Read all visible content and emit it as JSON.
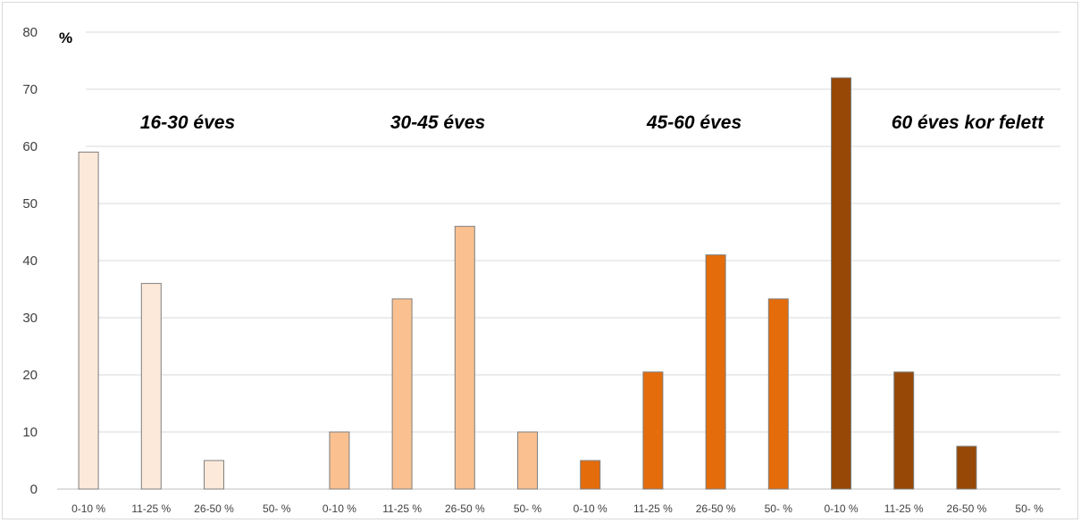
{
  "chart_data": {
    "type": "bar",
    "unit_label": "%",
    "ylim": [
      0,
      80
    ],
    "yticks": [
      0,
      10,
      20,
      30,
      40,
      50,
      60,
      70,
      80
    ],
    "grid": true,
    "categories": [
      "0-10 %",
      "11-25 %",
      "26-50 %",
      "50- %"
    ],
    "groups": [
      {
        "label": "16-30 éves",
        "color": "#fde9d9",
        "values": [
          59,
          36,
          5,
          0
        ]
      },
      {
        "label": "30-45 éves",
        "color": "#fac090",
        "values": [
          10,
          33.3,
          46,
          10
        ]
      },
      {
        "label": "45-60 éves",
        "color": "#e46c0a",
        "values": [
          5,
          20.5,
          41,
          33.3
        ]
      },
      {
        "label": "60 éves kor felett",
        "color": "#974806",
        "values": [
          72,
          20.5,
          7.5,
          0
        ]
      }
    ]
  }
}
